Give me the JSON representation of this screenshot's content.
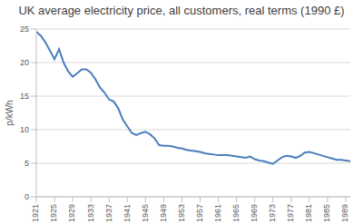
{
  "chart_data": {
    "type": "line",
    "title": "UK average electricity price, all customers, real terms (1990 £)",
    "y_label": "p/kWh",
    "x": [
      1921,
      1922,
      1923,
      1924,
      1925,
      1926,
      1927,
      1928,
      1929,
      1930,
      1931,
      1932,
      1933,
      1934,
      1935,
      1936,
      1937,
      1938,
      1939,
      1940,
      1941,
      1942,
      1943,
      1944,
      1945,
      1946,
      1947,
      1948,
      1949,
      1950,
      1951,
      1952,
      1953,
      1954,
      1955,
      1956,
      1957,
      1958,
      1959,
      1960,
      1961,
      1962,
      1963,
      1964,
      1965,
      1966,
      1967,
      1968,
      1969,
      1970,
      1971,
      1972,
      1973,
      1974,
      1975,
      1976,
      1977,
      1978,
      1979,
      1980,
      1981,
      1982,
      1983,
      1984,
      1985,
      1986,
      1987,
      1988,
      1989,
      1990
    ],
    "values": [
      24.6,
      24.0,
      23.0,
      21.8,
      20.5,
      22.0,
      20.0,
      18.7,
      17.9,
      18.4,
      19.0,
      19.0,
      18.5,
      17.5,
      16.3,
      15.5,
      14.5,
      14.2,
      13.2,
      11.5,
      10.5,
      9.5,
      9.2,
      9.5,
      9.7,
      9.3,
      8.7,
      7.7,
      7.6,
      7.6,
      7.5,
      7.3,
      7.2,
      7.0,
      6.9,
      6.8,
      6.7,
      6.5,
      6.4,
      6.3,
      6.2,
      6.2,
      6.2,
      6.1,
      6.0,
      5.9,
      5.8,
      6.0,
      5.6,
      5.4,
      5.3,
      5.1,
      4.9,
      5.4,
      5.9,
      6.1,
      6.0,
      5.8,
      6.1,
      6.6,
      6.7,
      6.5,
      6.3,
      6.1,
      5.9,
      5.7,
      5.5,
      5.5,
      5.4,
      5.3
    ],
    "color": "#4a7ebb",
    "xlim": [
      1921,
      1990
    ],
    "xticks": [
      1921,
      1925,
      1929,
      1933,
      1937,
      1941,
      1945,
      1949,
      1953,
      1957,
      1961,
      1965,
      1969,
      1973,
      1977,
      1981,
      1985,
      1989
    ],
    "ylim": [
      0,
      25
    ],
    "yticks": [
      0,
      5,
      10,
      15,
      20,
      25
    ],
    "grid": true
  }
}
